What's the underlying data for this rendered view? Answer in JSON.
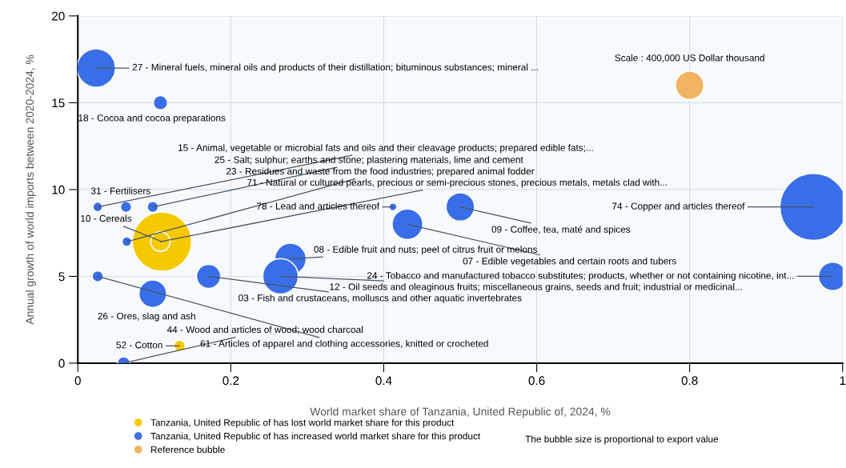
{
  "chart_data": {
    "type": "bubble",
    "xlabel": "World market share of Tanzania, United Republic of, 2024, %",
    "ylabel": "Annual growth of world imports between 2020-2024, %",
    "xlim": [
      0,
      1
    ],
    "xticks": [
      0,
      0.2,
      0.4,
      0.6,
      0.8,
      1
    ],
    "ylim": [
      0,
      20
    ],
    "yticks": [
      0,
      5,
      10,
      15,
      20
    ],
    "grid": true,
    "legend": "bottom",
    "series": [
      {
        "name": "Tanzania, United Republic of has lost world market share for this product",
        "color": "#f5c800",
        "x": [
          0.11,
          0.108,
          0.133
        ],
        "values": [
          7,
          7,
          1
        ],
        "sizes": [
          0.78,
          0.083,
          0.028
        ]
      },
      {
        "name": "Tanzania, United Republic of has increased world market share for this product",
        "color": "#3a6ee8",
        "x": [
          0.024,
          0.108,
          0.026,
          0.063,
          0.098,
          0.064,
          0.412,
          0.431,
          0.5,
          0.962,
          0.987,
          0.278,
          0.265,
          0.171,
          0.098,
          0.026,
          0.06
        ],
        "values": [
          17,
          15,
          9,
          9,
          9,
          7,
          9,
          8,
          9,
          9,
          5,
          6,
          5,
          5,
          4,
          5,
          0
        ],
        "sizes": [
          0.33,
          0.046,
          0.021,
          0.028,
          0.028,
          0.021,
          0.014,
          0.21,
          0.18,
          1,
          0.18,
          0.22,
          0.28,
          0.13,
          0.17,
          0.028,
          0.037
        ]
      },
      {
        "name": "Reference bubble",
        "color": "#f0b462",
        "x": [
          0.8
        ],
        "values": [
          16
        ],
        "sizes": [
          0.18
        ]
      }
    ],
    "annotations": [
      {
        "text": "27 - Mineral fuels, mineral oils and products of their distillation; bituminous substances; mineral ...",
        "x": 0.024,
        "y": 17
      },
      {
        "text": "18 - Cocoa and cocoa preparations",
        "x": 0.108,
        "y": 15
      },
      {
        "text": "15 - Animal, vegetable or microbial fats and oils and their cleavage products; prepared edible fats;...",
        "x": 0.026,
        "y": 9
      },
      {
        "text": "25 - Salt; sulphur; earths and stone; plastering materials, lime and cement",
        "x": 0.098,
        "y": 9
      },
      {
        "text": "23 - Residues and waste from the food industries; prepared animal fodder",
        "x": 0.064,
        "y": 7
      },
      {
        "text": "31 - Fertilisers",
        "x": 0.063,
        "y": 9
      },
      {
        "text": "71 - Natural or cultured pearls, precious or semi-precious stones, precious metals, metals clad with...",
        "x": 0.108,
        "y": 7
      },
      {
        "text": "10 - Cereals",
        "x": 0.11,
        "y": 7
      },
      {
        "text": "78 - Lead and articles thereof",
        "x": 0.412,
        "y": 9
      },
      {
        "text": "74 - Copper and articles thereof",
        "x": 0.962,
        "y": 9
      },
      {
        "text": "09 - Coffee, tea, maté and spices",
        "x": 0.5,
        "y": 9
      },
      {
        "text": "07 - Edible vegetables and certain roots and tubers",
        "x": 0.431,
        "y": 8
      },
      {
        "text": "08 - Edible fruit and nuts; peel of citrus fruit or melons",
        "x": 0.278,
        "y": 6
      },
      {
        "text": "24 - Tobacco and manufactured tobacco substitutes; products, whether or not containing nicotine, int...",
        "x": 0.987,
        "y": 5
      },
      {
        "text": "12 - Oil seeds and oleaginous fruits; miscellaneous grains, seeds and fruit; industrial or medicinal...",
        "x": 0.265,
        "y": 5
      },
      {
        "text": "03 - Fish and crustaceans, molluscs and other aquatic invertebrates",
        "x": 0.171,
        "y": 5
      },
      {
        "text": "26 - Ores, slag and ash",
        "x": 0.098,
        "y": 4
      },
      {
        "text": "44 - Wood and articles of wood; wood charcoal",
        "x": 0.06,
        "y": 0
      },
      {
        "text": "61 - Articles of apparel and clothing accessories, knitted or crocheted",
        "x": 0.026,
        "y": 5
      },
      {
        "text": "52 - Cotton",
        "x": 0.133,
        "y": 1
      },
      "Scale : 400,000 US Dollar thousand",
      "The bubble size is proportional to export value"
    ]
  }
}
